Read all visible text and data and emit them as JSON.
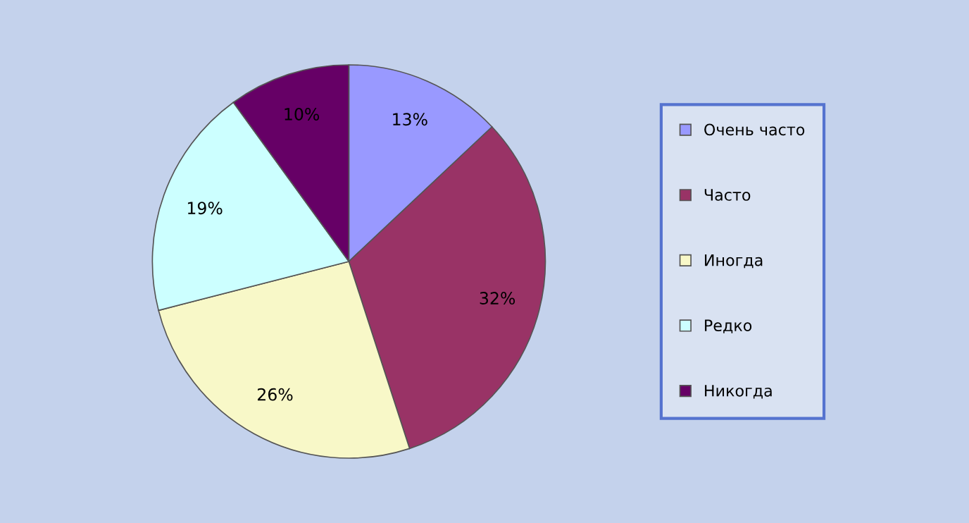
{
  "chart_data": {
    "type": "pie",
    "categories": [
      "Очень часто",
      "Часто",
      "Иногда",
      "Редко",
      "Никогда"
    ],
    "values": [
      13,
      32,
      26,
      19,
      10
    ],
    "colors": [
      "#9999ff",
      "#993366",
      "#f8f8c8",
      "#ccffff",
      "#660066"
    ],
    "value_labels": [
      "13%",
      "32%",
      "26%",
      "19%",
      "10%"
    ],
    "legend": "right"
  }
}
